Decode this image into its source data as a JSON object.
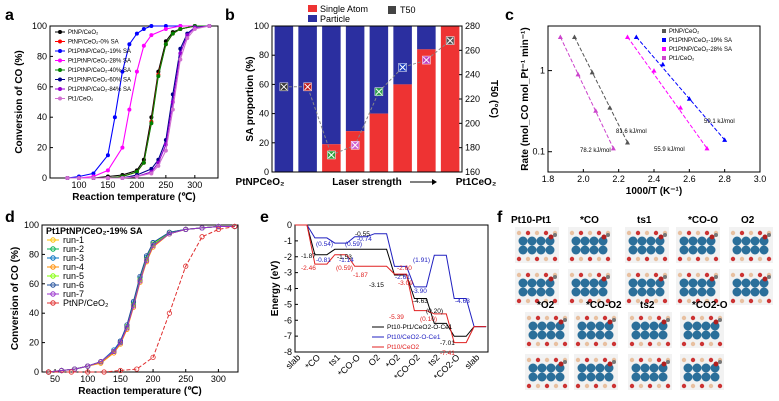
{
  "panels": {
    "a": "a",
    "b": "b",
    "c": "c",
    "d": "d",
    "e": "e",
    "f": "f"
  },
  "chart_data": [
    {
      "id": "a",
      "type": "line",
      "xlabel": "Reaction temperature (℃)",
      "ylabel": "Conversion of CO (%)",
      "xlim": [
        50,
        340
      ],
      "ylim": [
        0,
        100
      ],
      "xticks": [
        100,
        150,
        200,
        250,
        300
      ],
      "yticks": [
        0,
        20,
        40,
        60,
        80,
        100
      ],
      "series": [
        {
          "name": "Pt_NP/CeO2",
          "color": "#000000",
          "x": [
            80,
            100,
            125,
            150,
            175,
            200,
            212,
            225,
            237,
            250,
            262,
            275,
            300,
            325
          ],
          "y": [
            0,
            0,
            0,
            1,
            2,
            5,
            12,
            40,
            70,
            90,
            96,
            98,
            100,
            100
          ]
        },
        {
          "name": "Pt_NP/CeO2-0% SA",
          "color": "#ff0000",
          "x": [
            80,
            100,
            125,
            150,
            175,
            200,
            212,
            225,
            237,
            250,
            262,
            275,
            300,
            325
          ],
          "y": [
            0,
            0,
            0,
            0,
            1,
            4,
            10,
            37,
            68,
            88,
            95,
            98,
            100,
            100
          ]
        },
        {
          "name": "Pt_1Pt_NP/CeO2-19% SA",
          "color": "#0000ff",
          "x": [
            80,
            100,
            125,
            150,
            162,
            175,
            187,
            200,
            212,
            225,
            250,
            275,
            300,
            325
          ],
          "y": [
            0,
            1,
            3,
            15,
            40,
            70,
            88,
            95,
            98,
            100,
            100,
            100,
            100,
            100
          ]
        },
        {
          "name": "Pt_1Pt_NP/CeO2-28% SA",
          "color": "#ff00ff",
          "x": [
            80,
            100,
            125,
            150,
            175,
            187,
            200,
            212,
            225,
            250,
            275,
            300,
            325
          ],
          "y": [
            0,
            0,
            1,
            5,
            20,
            45,
            70,
            87,
            94,
            98,
            100,
            100,
            100
          ]
        },
        {
          "name": "Pt_1Pt_NP/CeO2-40% SA",
          "color": "#008000",
          "x": [
            80,
            100,
            125,
            150,
            175,
            200,
            212,
            225,
            237,
            250,
            262,
            275,
            300,
            325
          ],
          "y": [
            0,
            0,
            0,
            0,
            1,
            4,
            10,
            36,
            67,
            88,
            95,
            98,
            100,
            100
          ]
        },
        {
          "name": "Pt_1Pt_NP/CeO2-60% SA",
          "color": "#00008b",
          "x": [
            80,
            100,
            125,
            150,
            175,
            200,
            225,
            237,
            250,
            262,
            275,
            287,
            300,
            325
          ],
          "y": [
            0,
            0,
            0,
            0,
            0,
            2,
            6,
            12,
            25,
            55,
            85,
            95,
            99,
            100
          ]
        },
        {
          "name": "Pt_1Pt_NP/CeO2-84% SA",
          "color": "#9400d3",
          "x": [
            80,
            100,
            125,
            150,
            175,
            200,
            225,
            237,
            250,
            262,
            275,
            287,
            300,
            325
          ],
          "y": [
            0,
            0,
            0,
            0,
            0,
            1,
            4,
            10,
            22,
            50,
            82,
            94,
            99,
            100
          ]
        },
        {
          "name": "Pt_1/CeO2",
          "color": "#d070d0",
          "x": [
            80,
            100,
            125,
            150,
            175,
            200,
            225,
            237,
            250,
            262,
            275,
            287,
            300,
            325
          ],
          "y": [
            0,
            0,
            0,
            0,
            0,
            1,
            3,
            8,
            18,
            45,
            78,
            92,
            98,
            100
          ]
        }
      ]
    },
    {
      "id": "b",
      "type": "bar",
      "xlabel": "Laser strength",
      "xlabel_left": "Pt_NPCeO2",
      "xlabel_right": "Pt_1CeO2",
      "ylabel": "SA proportion (%)",
      "y2label": "T50 (°C)",
      "ylim": [
        0,
        100
      ],
      "y2lim": [
        160,
        280
      ],
      "yticks": [
        0,
        20,
        40,
        60,
        80,
        100
      ],
      "y2ticks": [
        160,
        180,
        200,
        220,
        240,
        260,
        280
      ],
      "legend": [
        "Single Atom",
        "Particle",
        "T50"
      ],
      "single_atom": [
        0,
        0,
        19,
        28,
        40,
        60,
        84,
        100
      ],
      "T50": [
        230,
        230,
        174,
        182,
        226,
        246,
        252,
        268
      ]
    },
    {
      "id": "c",
      "type": "scatter",
      "xlabel": "1000/T (K⁻¹)",
      "ylabel": "Rate (mol_CO mol_Pt⁻¹ min⁻¹)",
      "xlim": [
        1.8,
        3.0
      ],
      "xticks": [
        1.8,
        2.0,
        2.2,
        2.4,
        2.6,
        2.8,
        3.0
      ],
      "yticks": [
        0.1,
        1
      ],
      "series": [
        {
          "name": "Pt_NP/CeO2",
          "color": "#555555",
          "x": [
            1.95,
            2.05,
            2.15,
            2.25
          ],
          "y": [
            2.6,
            0.95,
            0.35,
            0.13
          ],
          "ea": "81.6 kJ/mol"
        },
        {
          "name": "Pt_1Pt_NP/CeO2-19% SA",
          "color": "#0000ff",
          "x": [
            2.3,
            2.45,
            2.6,
            2.8
          ],
          "y": [
            2.6,
            1.2,
            0.45,
            0.14
          ],
          "ea": "59.1 kJ/mol"
        },
        {
          "name": "Pt_1Pt_NP/CeO2-28% SA",
          "color": "#ff00ff",
          "x": [
            2.25,
            2.4,
            2.55,
            2.7
          ],
          "y": [
            2.6,
            1.0,
            0.35,
            0.11
          ],
          "ea": "55.9 kJ/mol"
        },
        {
          "name": "Pt_1/CeO2",
          "color": "#cc44cc",
          "x": [
            1.87,
            1.97,
            2.07,
            2.17
          ],
          "y": [
            2.6,
            0.9,
            0.32,
            0.11
          ],
          "ea": "78.2 kJ/mol"
        }
      ]
    },
    {
      "id": "d",
      "type": "line",
      "title": "Pt_1Pt_NP/CeO2-19% SA",
      "xlabel": "Reaction temperature (℃)",
      "ylabel": "Conversion of CO (%)",
      "xlim": [
        30,
        330
      ],
      "ylim": [
        0,
        100
      ],
      "xticks": [
        50,
        100,
        150,
        200,
        250,
        300
      ],
      "yticks": [
        0,
        20,
        40,
        60,
        80,
        100
      ],
      "series": [
        {
          "name": "run-1",
          "color": "#ffc000",
          "x": [
            40,
            60,
            80,
            100,
            120,
            140,
            150,
            160,
            170,
            180,
            190,
            200,
            225,
            250,
            275,
            300,
            325
          ],
          "y": [
            0,
            1,
            2,
            4,
            7,
            14,
            20,
            30,
            45,
            62,
            76,
            86,
            94,
            97,
            98,
            99,
            99
          ]
        },
        {
          "name": "run-2",
          "color": "#00b050",
          "x": [
            40,
            60,
            80,
            100,
            120,
            140,
            150,
            160,
            170,
            180,
            190,
            200,
            225,
            250,
            275,
            300,
            325
          ],
          "y": [
            0,
            1,
            2,
            4,
            7,
            14,
            20,
            30,
            46,
            63,
            77,
            87,
            94,
            97,
            98,
            99,
            99
          ]
        },
        {
          "name": "run-3",
          "color": "#0070c0",
          "x": [
            40,
            60,
            80,
            100,
            120,
            140,
            150,
            160,
            170,
            180,
            190,
            200,
            225,
            250,
            275,
            300,
            325
          ],
          "y": [
            0,
            1,
            2,
            4,
            7,
            15,
            21,
            31,
            47,
            64,
            78,
            88,
            95,
            97,
            98,
            99,
            99
          ]
        },
        {
          "name": "run-4",
          "color": "#ff8c00",
          "x": [
            40,
            60,
            80,
            100,
            120,
            140,
            150,
            160,
            170,
            180,
            190,
            200,
            225,
            250,
            275,
            300,
            325
          ],
          "y": [
            0,
            1,
            2,
            4,
            6,
            13,
            19,
            29,
            44,
            61,
            75,
            85,
            94,
            97,
            98,
            99,
            99
          ]
        },
        {
          "name": "run-5",
          "color": "#7fff00",
          "x": [
            40,
            60,
            80,
            100,
            120,
            140,
            150,
            160,
            170,
            180,
            190,
            200,
            225,
            250,
            275,
            300,
            325
          ],
          "y": [
            0,
            1,
            2,
            4,
            7,
            14,
            20,
            31,
            46,
            63,
            77,
            87,
            95,
            97,
            98,
            99,
            99
          ]
        },
        {
          "name": "run-6",
          "color": "#1f4e9a",
          "x": [
            40,
            60,
            80,
            100,
            120,
            140,
            150,
            160,
            170,
            180,
            190,
            200,
            225,
            250,
            275,
            300,
            325
          ],
          "y": [
            0,
            1,
            2,
            4,
            7,
            14,
            21,
            32,
            48,
            65,
            79,
            88,
            95,
            97,
            98,
            99,
            99
          ]
        },
        {
          "name": "run-7",
          "color": "#9932cc",
          "x": [
            40,
            60,
            80,
            100,
            120,
            140,
            150,
            160,
            170,
            180,
            190,
            200,
            225,
            250,
            275,
            300,
            325
          ],
          "y": [
            0,
            1,
            2,
            4,
            7,
            14,
            20,
            30,
            45,
            62,
            76,
            86,
            94,
            97,
            98,
            99,
            99
          ]
        },
        {
          "name": "Pt_NP/CeO2",
          "color": "#e03030",
          "dashed": true,
          "x": [
            40,
            75,
            100,
            125,
            150,
            175,
            200,
            225,
            250,
            275,
            300,
            325
          ],
          "y": [
            0,
            0,
            0,
            0,
            1,
            2,
            10,
            40,
            72,
            92,
            97,
            99
          ]
        }
      ]
    },
    {
      "id": "e",
      "type": "line",
      "ylabel": "Energy (eV)",
      "ylim": [
        -8,
        0
      ],
      "yticks": [
        0,
        -1,
        -2,
        -3,
        -4,
        -5,
        -6,
        -7,
        -8
      ],
      "xticks": [
        "slab",
        "*CO",
        "ts1",
        "*CO-O",
        "O2",
        "*O2",
        "*CO-O2",
        "ts2",
        "*CO2-O",
        "slab"
      ],
      "legend": [
        "Pt10-Pt1/CeO2-O-Ce1",
        "Pt10/CeO2-O-Ce1",
        "Pt10/CeO2"
      ],
      "series": [
        {
          "name": "Pt10-Pt1/CeO2-O-Ce1",
          "color": "#000000",
          "y": [
            0,
            -1.87,
            -1.53,
            -1.53,
            -1.53,
            -3.15,
            -4.63,
            -6.2,
            -7.01,
            -6.4
          ]
        },
        {
          "name": "Pt10/CeO2-O-Ce1",
          "color": "#2020c0",
          "y": [
            0,
            -0.81,
            -1.14,
            -0.74,
            -0.55,
            -2.61,
            -3.9,
            -1.91,
            -4.63,
            -6.4
          ]
        },
        {
          "name": "Pt10/CeO2",
          "color": "#e02020",
          "y": [
            0,
            -2.46,
            -1.87,
            -2.6,
            -2.6,
            -3.09,
            -5.39,
            -5.6,
            -7.41,
            -6.4
          ]
        }
      ],
      "annotations": [
        "-1.87",
        "(0.54)",
        "-1.53",
        "-0.55",
        "-0.81",
        "(0.59)",
        "-1.14",
        "-0.74",
        "-2.46",
        "(0.59)",
        "-1.87",
        "-2.60",
        "-2.61",
        "-3.09",
        "-3.15",
        "(1.91)",
        "-3.90",
        "-4.63",
        "-4.63",
        "(0.20)",
        "-5.39",
        "(0.10)",
        "-7.01",
        "-7.41"
      ]
    },
    {
      "id": "f",
      "type": "other",
      "labels": [
        "Pt10-Pt1",
        "*CO",
        "ts1",
        "*CO-O",
        "O2",
        "*O2",
        "*CO-O2",
        "ts2",
        "*CO2-O"
      ]
    }
  ]
}
